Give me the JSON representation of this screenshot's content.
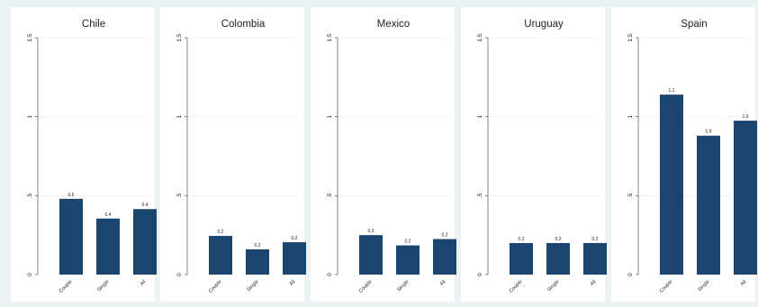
{
  "chart_data": [
    {
      "type": "bar",
      "title": "Chile",
      "categories": [
        "Couple",
        "Single",
        "All"
      ],
      "values": [
        0.48,
        0.355,
        0.415
      ],
      "data_labels": [
        "0.5",
        "0.4",
        "0.4"
      ],
      "ylim": [
        0,
        1.5
      ],
      "yticks": [
        0,
        0.5,
        1,
        1.5
      ],
      "ytick_labels": [
        "0",
        ".5",
        "1",
        "1.5"
      ],
      "grid": true,
      "bar_color": "#1a456e"
    },
    {
      "type": "bar",
      "title": "Colombia",
      "categories": [
        "Couple",
        "Single",
        "All"
      ],
      "values": [
        0.245,
        0.16,
        0.205
      ],
      "data_labels": [
        "0.2",
        "0.2",
        "0.2"
      ],
      "ylim": [
        0,
        1.5
      ],
      "yticks": [
        0,
        0.5,
        1,
        1.5
      ],
      "ytick_labels": [
        "0",
        ".5",
        "1",
        "1.5"
      ],
      "grid": true,
      "bar_color": "#1a456e"
    },
    {
      "type": "bar",
      "title": "Mexico",
      "categories": [
        "Couple",
        "Single",
        "All"
      ],
      "values": [
        0.25,
        0.185,
        0.225
      ],
      "data_labels": [
        "0.3",
        "0.2",
        "0.2"
      ],
      "ylim": [
        0,
        1.5
      ],
      "yticks": [
        0,
        0.5,
        1,
        1.5
      ],
      "ytick_labels": [
        "0",
        ".5",
        "1",
        "1.5"
      ],
      "grid": true,
      "bar_color": "#1a456e"
    },
    {
      "type": "bar",
      "title": "Uruguay",
      "categories": [
        "Couple",
        "Single",
        "All"
      ],
      "values": [
        0.2,
        0.2,
        0.2
      ],
      "data_labels": [
        "0.2",
        "0.2",
        "0.2"
      ],
      "ylim": [
        0,
        1.5
      ],
      "yticks": [
        0,
        0.5,
        1,
        1.5
      ],
      "ytick_labels": [
        "0",
        ".5",
        "1",
        "1.5"
      ],
      "grid": true,
      "bar_color": "#1a456e"
    },
    {
      "type": "bar",
      "title": "Spain",
      "categories": [
        "Couple",
        "Single",
        "All"
      ],
      "values": [
        1.14,
        0.88,
        0.975
      ],
      "data_labels": [
        "1.1",
        "0.9",
        "1.0"
      ],
      "ylim": [
        0,
        1.5
      ],
      "yticks": [
        0,
        0.5,
        1,
        1.5
      ],
      "ytick_labels": [
        "0",
        ".5",
        "1",
        "1.5"
      ],
      "grid": true,
      "bar_color": "#1a456e"
    }
  ],
  "colors": {
    "frame_background": "#eaf2f3",
    "plot_background": "#ffffff",
    "bar": "#1a456e",
    "axis": "#333333",
    "grid": "#eef0f0"
  }
}
